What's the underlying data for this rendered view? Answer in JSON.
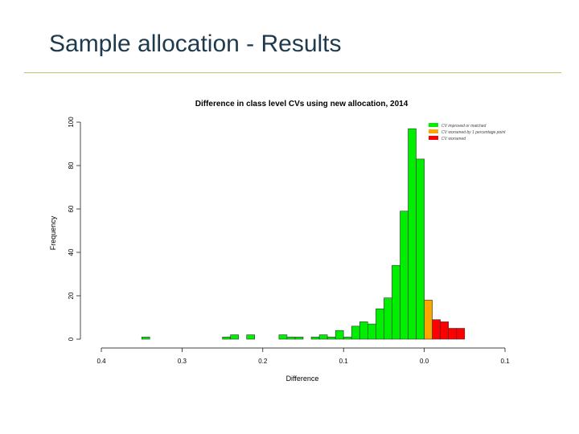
{
  "slide": {
    "title": "Sample allocation - Results"
  },
  "colors": {
    "title_text": "#1f3a4d",
    "rule": "#b5c96a",
    "improved": "#00ee00",
    "worsened_small": "#ffa500",
    "worsened": "#ff0000"
  },
  "chart_data": {
    "type": "bar",
    "title": "Difference in class level CVs using new allocation, 2014",
    "xlabel": "Difference",
    "ylabel": "Frequency",
    "x_ticks": [
      "0.4",
      "0.3",
      "0.2",
      "0.1",
      "0.0",
      "0.1"
    ],
    "y_ticks": [
      "0",
      "20",
      "40",
      "60",
      "80",
      "100"
    ],
    "ylim": [
      0,
      100
    ],
    "grid": false,
    "legend_position": "top-right",
    "legend": [
      {
        "label": "CV improved or matched",
        "color": "#00ee00"
      },
      {
        "label": "CV worsened by 1 percentage point",
        "color": "#ffa500"
      },
      {
        "label": "CV worsened",
        "color": "#ff0000"
      }
    ],
    "bin_width": 0.01,
    "bins": [
      {
        "left": -0.35,
        "count": 1,
        "group": "CV improved or matched"
      },
      {
        "left": -0.25,
        "count": 1,
        "group": "CV improved or matched"
      },
      {
        "left": -0.24,
        "count": 2,
        "group": "CV improved or matched"
      },
      {
        "left": -0.22,
        "count": 2,
        "group": "CV improved or matched"
      },
      {
        "left": -0.18,
        "count": 2,
        "group": "CV improved or matched"
      },
      {
        "left": -0.17,
        "count": 1,
        "group": "CV improved or matched"
      },
      {
        "left": -0.16,
        "count": 1,
        "group": "CV improved or matched"
      },
      {
        "left": -0.14,
        "count": 1,
        "group": "CV improved or matched"
      },
      {
        "left": -0.13,
        "count": 2,
        "group": "CV improved or matched"
      },
      {
        "left": -0.12,
        "count": 1,
        "group": "CV improved or matched"
      },
      {
        "left": -0.11,
        "count": 4,
        "group": "CV improved or matched"
      },
      {
        "left": -0.1,
        "count": 1,
        "group": "CV improved or matched"
      },
      {
        "left": -0.09,
        "count": 6,
        "group": "CV improved or matched"
      },
      {
        "left": -0.08,
        "count": 8,
        "group": "CV improved or matched"
      },
      {
        "left": -0.07,
        "count": 7,
        "group": "CV improved or matched"
      },
      {
        "left": -0.06,
        "count": 14,
        "group": "CV improved or matched"
      },
      {
        "left": -0.05,
        "count": 19,
        "group": "CV improved or matched"
      },
      {
        "left": -0.04,
        "count": 34,
        "group": "CV improved or matched"
      },
      {
        "left": -0.03,
        "count": 59,
        "group": "CV improved or matched"
      },
      {
        "left": -0.02,
        "count": 97,
        "group": "CV improved or matched"
      },
      {
        "left": -0.01,
        "count": 83,
        "group": "CV improved or matched"
      },
      {
        "left": 0.0,
        "count": 18,
        "group": "CV worsened by 1 percentage point"
      },
      {
        "left": 0.01,
        "count": 9,
        "group": "CV worsened"
      },
      {
        "left": 0.02,
        "count": 8,
        "group": "CV worsened"
      },
      {
        "left": 0.03,
        "count": 5,
        "group": "CV worsened"
      },
      {
        "left": 0.04,
        "count": 5,
        "group": "CV worsened"
      }
    ]
  }
}
